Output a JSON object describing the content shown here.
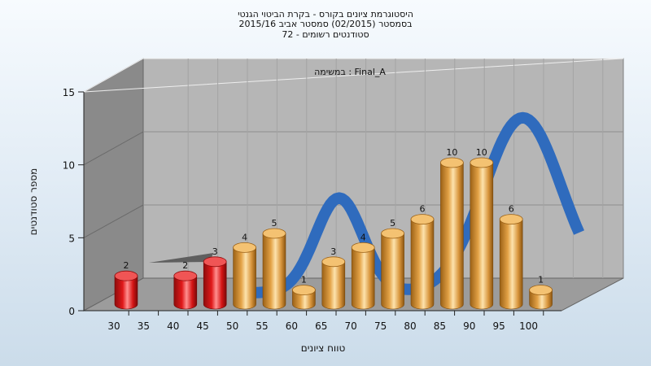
{
  "chart_data": {
    "type": "bar",
    "title": [
      "היסטוגרמת ציונים בקורס - בקרת הביטוי הגנטי",
      "בסמסטר (02/2015) סמסטר אביב 2015/16",
      "סטודנטים רשומים - 72"
    ],
    "subtitle": "במשימה : Final_A",
    "xlabel": "טווח ציונים",
    "ylabel": "מספר סטודנטים",
    "ylim": [
      0,
      15
    ],
    "yticks": [
      "0",
      "5",
      "10",
      "15"
    ],
    "categories": [
      "30",
      "35",
      "40",
      "45",
      "50",
      "55",
      "60",
      "65",
      "70",
      "75",
      "80",
      "85",
      "90",
      "95",
      "100"
    ],
    "values": [
      2,
      null,
      2,
      3,
      4,
      5,
      1,
      3,
      4,
      5,
      6,
      10,
      10,
      6,
      1
    ],
    "data_labels": [
      "2",
      "",
      "2",
      "3",
      "4",
      "5",
      "1",
      "3",
      "4",
      "5",
      "6",
      "10",
      "10",
      "6",
      "1"
    ],
    "fail_count": 4,
    "colors": {
      "fail": "#e0191a",
      "pass": "#e3a246",
      "curve": "#2f6bbd",
      "back_wall": "#b6b6b6",
      "left_wall": "#8a8a8a",
      "floor": "#9c9c9c"
    },
    "curve_peaks": [
      {
        "x": 62.5,
        "y": 6.5,
        "sd": 4.0
      },
      {
        "x": 93.5,
        "y": 12.0,
        "sd": 6.5
      }
    ],
    "grid": true,
    "legend": "none"
  }
}
